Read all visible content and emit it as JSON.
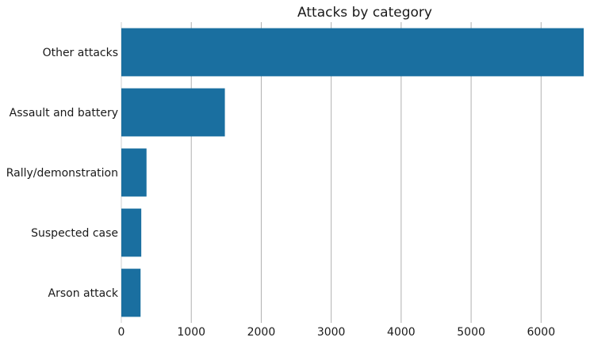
{
  "chart_data": {
    "type": "bar",
    "orientation": "horizontal",
    "title": "Attacks by category",
    "xlabel": "",
    "ylabel": "",
    "categories": [
      "Other attacks",
      "Assault and battery",
      "Rally/demonstration",
      "Suspected case",
      "Arson attack"
    ],
    "values": [
      6610,
      1480,
      360,
      285,
      275
    ],
    "xlim": [
      0,
      6620
    ],
    "xticks": [
      0,
      1000,
      2000,
      3000,
      4000,
      5000,
      6000
    ],
    "xtick_labels": [
      "0",
      "1000",
      "2000",
      "3000",
      "4000",
      "5000",
      "6000"
    ],
    "grid": "vertical",
    "legend": "none",
    "bar_color": "#1a6fa0",
    "grid_color": "#b0b0b0"
  }
}
